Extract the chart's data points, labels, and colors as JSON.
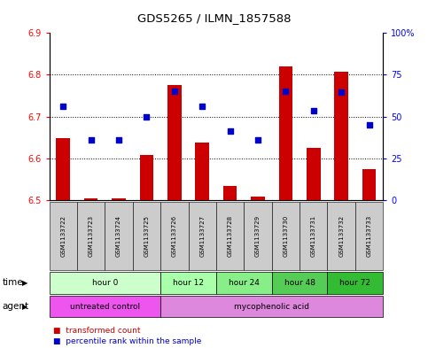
{
  "title": "GDS5265 / ILMN_1857588",
  "samples": [
    "GSM1133722",
    "GSM1133723",
    "GSM1133724",
    "GSM1133725",
    "GSM1133726",
    "GSM1133727",
    "GSM1133728",
    "GSM1133729",
    "GSM1133730",
    "GSM1133731",
    "GSM1133732",
    "GSM1133733"
  ],
  "bar_values": [
    6.648,
    6.505,
    6.504,
    6.608,
    6.775,
    6.638,
    6.534,
    6.508,
    6.82,
    6.625,
    6.808,
    6.575
  ],
  "scatter_values": [
    6.725,
    6.645,
    6.645,
    6.7,
    6.76,
    6.725,
    6.665,
    6.645,
    6.76,
    6.715,
    6.758,
    6.68
  ],
  "bar_base": 6.5,
  "ylim_left": [
    6.5,
    6.9
  ],
  "ylim_right": [
    0,
    100
  ],
  "yticks_left": [
    6.5,
    6.6,
    6.7,
    6.8,
    6.9
  ],
  "yticks_right": [
    0,
    25,
    50,
    75,
    100
  ],
  "ytick_labels_right": [
    "0",
    "25",
    "50",
    "75",
    "100%"
  ],
  "bar_color": "#cc0000",
  "scatter_color": "#0000cc",
  "time_groups": [
    {
      "label": "hour 0",
      "start": 0,
      "end": 4,
      "color": "#ccffcc"
    },
    {
      "label": "hour 12",
      "start": 4,
      "end": 6,
      "color": "#aaffaa"
    },
    {
      "label": "hour 24",
      "start": 6,
      "end": 8,
      "color": "#88ee88"
    },
    {
      "label": "hour 48",
      "start": 8,
      "end": 10,
      "color": "#55cc55"
    },
    {
      "label": "hour 72",
      "start": 10,
      "end": 12,
      "color": "#33bb33"
    }
  ],
  "agent_groups": [
    {
      "label": "untreated control",
      "start": 0,
      "end": 4,
      "color": "#ee55ee"
    },
    {
      "label": "mycophenolic acid",
      "start": 4,
      "end": 12,
      "color": "#dd88dd"
    }
  ],
  "legend_items": [
    {
      "label": "transformed count",
      "color": "#cc0000"
    },
    {
      "label": "percentile rank within the sample",
      "color": "#0000cc"
    }
  ],
  "time_label": "time",
  "agent_label": "agent",
  "background_color": "#ffffff",
  "plot_bg_color": "#ffffff",
  "grid_color": "#000000",
  "bar_width": 0.5,
  "scatter_size": 22,
  "xticklabel_bg": "#cccccc"
}
